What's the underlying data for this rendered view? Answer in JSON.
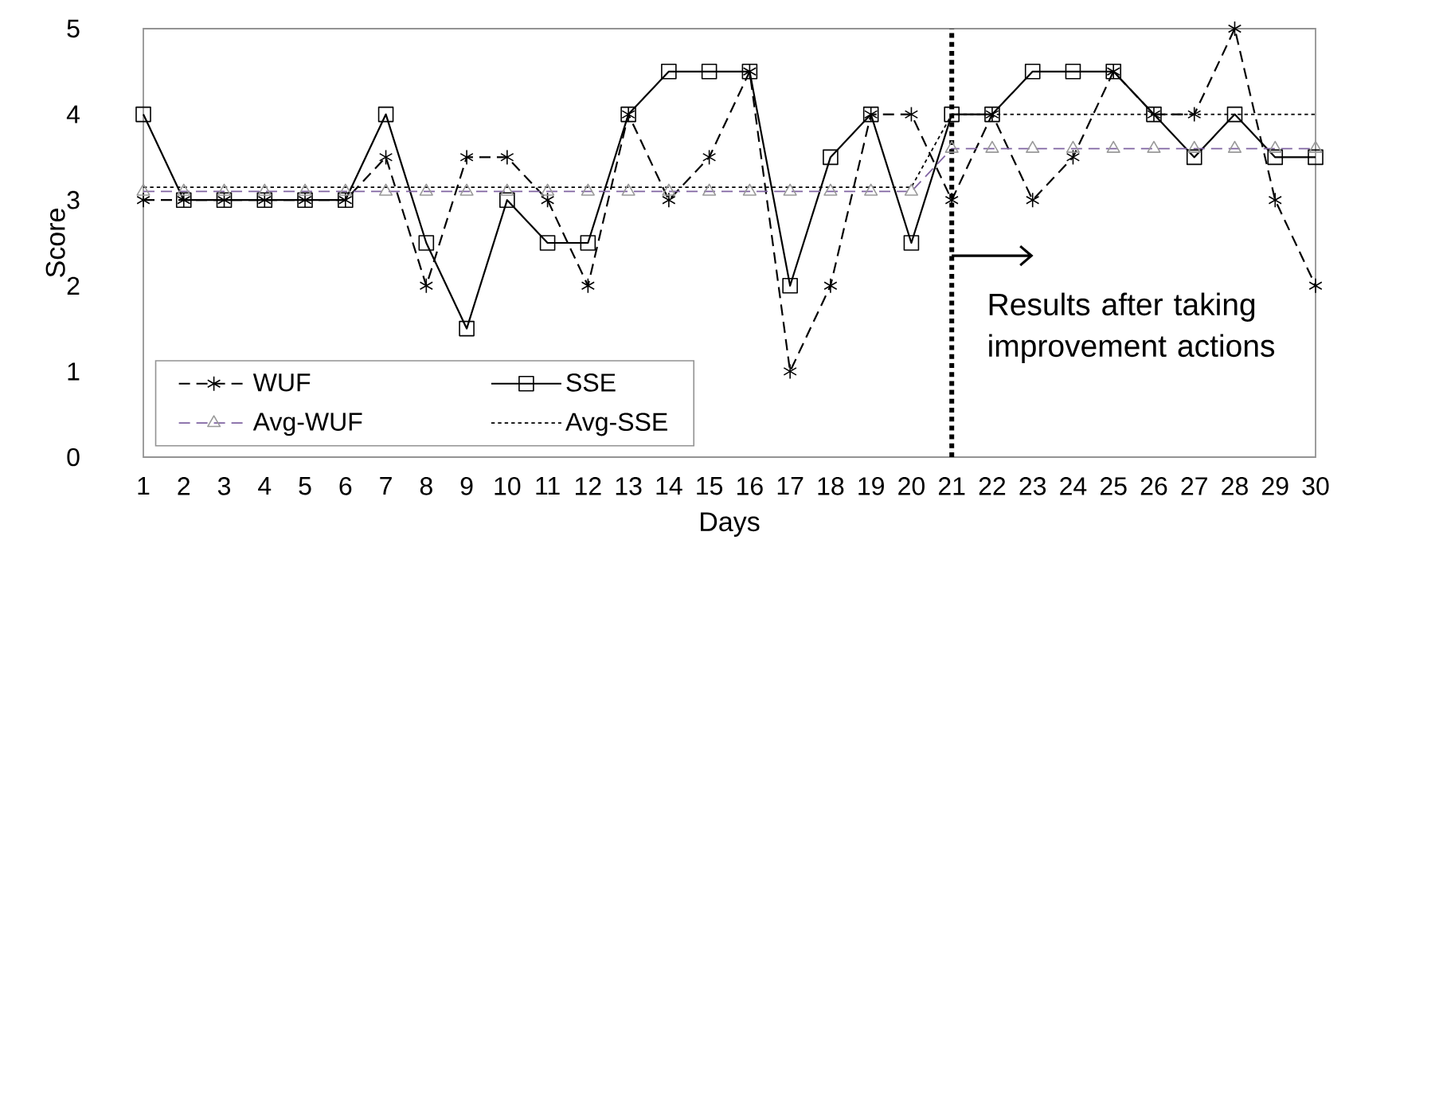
{
  "chart_data": {
    "type": "line",
    "xlabel": "Days",
    "ylabel": "Score",
    "x": [
      1,
      2,
      3,
      4,
      5,
      6,
      7,
      8,
      9,
      10,
      11,
      12,
      13,
      14,
      15,
      16,
      17,
      18,
      19,
      20,
      21,
      22,
      23,
      24,
      25,
      26,
      27,
      28,
      29,
      30
    ],
    "xlim": [
      1,
      30
    ],
    "xticks": [
      1,
      2,
      3,
      4,
      5,
      6,
      7,
      8,
      9,
      10,
      11,
      12,
      13,
      14,
      15,
      16,
      17,
      18,
      19,
      20,
      21,
      22,
      23,
      24,
      25,
      26,
      27,
      28,
      29,
      30
    ],
    "ylim": [
      0,
      5
    ],
    "yticks": [
      0,
      1,
      2,
      3,
      4,
      5
    ],
    "legend": "bottom left",
    "series": [
      {
        "name": "WUF",
        "color": "#000000",
        "marker": "cross",
        "line_style": "dashed",
        "values": [
          3,
          3,
          3,
          3,
          3,
          3,
          3.5,
          2,
          3.5,
          3.5,
          3,
          2,
          4,
          3,
          3.5,
          4.5,
          1,
          2,
          4,
          4,
          3,
          4,
          3,
          3.5,
          4.5,
          4,
          4,
          5,
          3,
          2
        ]
      },
      {
        "name": "SSE",
        "color": "#000000",
        "marker": "square",
        "line_style": "solid",
        "values": [
          4,
          3,
          3,
          3,
          3,
          3,
          4,
          2.5,
          1.5,
          3,
          2.5,
          2.5,
          4,
          4.5,
          4.5,
          4.5,
          2,
          3.5,
          4,
          2.5,
          4,
          4,
          4.5,
          4.5,
          4.5,
          4,
          3.5,
          4,
          3.5,
          3.5
        ]
      },
      {
        "name": "Avg-WUF",
        "color": "#8064a2",
        "marker": "triangle",
        "line_style": "dashed",
        "values": [
          3.1,
          3.1,
          3.1,
          3.1,
          3.1,
          3.1,
          3.1,
          3.1,
          3.1,
          3.1,
          3.1,
          3.1,
          3.1,
          3.1,
          3.1,
          3.1,
          3.1,
          3.1,
          3.1,
          3.1,
          3.6,
          3.6,
          3.6,
          3.6,
          3.6,
          3.6,
          3.6,
          3.6,
          3.6,
          3.6
        ]
      },
      {
        "name": "Avg-SSE",
        "color": "#000000",
        "marker": "none",
        "line_style": "dotted",
        "values": [
          3.15,
          3.15,
          3.15,
          3.15,
          3.15,
          3.15,
          3.15,
          3.15,
          3.15,
          3.15,
          3.15,
          3.15,
          3.15,
          3.15,
          3.15,
          3.15,
          3.15,
          3.15,
          3.15,
          3.15,
          4,
          4,
          4,
          4,
          4,
          4,
          4,
          4,
          4,
          4
        ]
      }
    ],
    "ref_lines": [
      {
        "axis": "x",
        "value": 21,
        "line_style": "dotted",
        "color": "#000000"
      }
    ],
    "annotations": [
      {
        "text": "Results after taking improvement actions",
        "x": 21,
        "y": 2.35
      }
    ]
  }
}
